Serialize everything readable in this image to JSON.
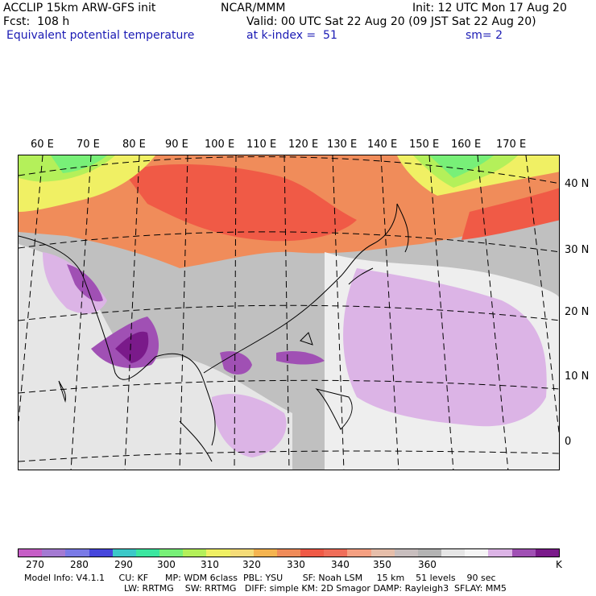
{
  "header": {
    "model": "ACCLIP 15km ARW-GFS init",
    "center": "NCAR/MMM",
    "init": "Init: 12 UTC Mon 17 Aug 20",
    "fcst": "Fcst:  108 h",
    "valid": "Valid: 00 UTC Sat 22 Aug 20 (09 JST Sat 22 Aug 20)",
    "field": "Equivalent potential temperature",
    "level": "at k-index =  51",
    "smooth": "sm= 2"
  },
  "map": {
    "lon_labels": [
      "60 E",
      "70 E",
      "80 E",
      "90 E",
      "100 E",
      "110 E",
      "120 E",
      "130 E",
      "140 E",
      "150 E",
      "160 E",
      "170 E"
    ],
    "lat_labels": [
      "40 N",
      "30 N",
      "20 N",
      "10 N",
      "0"
    ]
  },
  "colorbar": {
    "colors": [
      "#c65ec6",
      "#a47ad2",
      "#7a7ae6",
      "#4646dc",
      "#3cc8c8",
      "#3ce6a0",
      "#78f078",
      "#b4f05a",
      "#f0f064",
      "#f5dc78",
      "#f5b450",
      "#f08c5a",
      "#f05a46",
      "#f06e5a",
      "#f5a082",
      "#e6beaa",
      "#c8bebe",
      "#b4b4b4",
      "#e6e6e6",
      "#f5f5f5",
      "#dcb4e6",
      "#a050b4",
      "#7a1a8a"
    ],
    "ticks": [
      "270",
      "280",
      "290",
      "300",
      "310",
      "320",
      "330",
      "340",
      "350",
      "360",
      "K"
    ]
  },
  "footer": {
    "line1": "Model Info: V4.1.1     CU: KF      MP: WDM 6class  PBL: YSU       SF: Noah LSM     15 km    51 levels    90 sec",
    "line2": "LW: RRTMG    SW: RRTMG   DIFF: simple KM: 2D Smagor DAMP: Rayleigh3  SFLAY: MM5"
  }
}
